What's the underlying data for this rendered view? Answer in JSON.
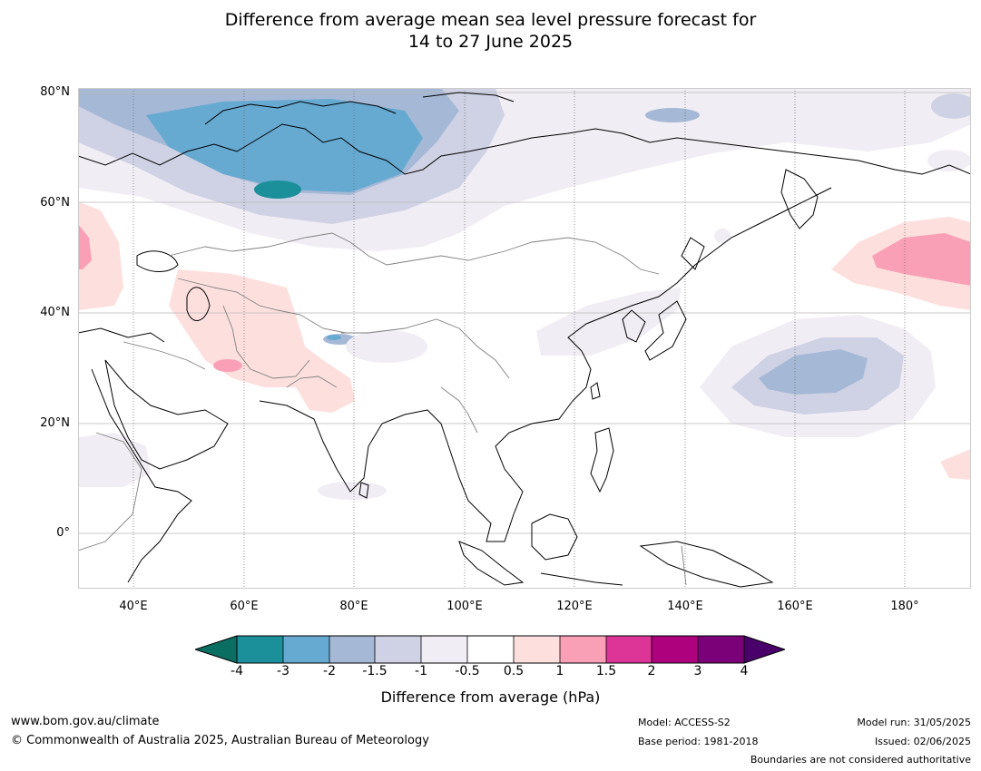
{
  "title": {
    "line1": "Difference from average mean sea level pressure forecast for",
    "line2": "14 to 27 June 2025"
  },
  "map": {
    "latitude_labels": [
      "80°N",
      "60°N",
      "40°N",
      "20°N",
      "0°"
    ],
    "longitude_labels": [
      "40°E",
      "60°E",
      "80°E",
      "100°E",
      "120°E",
      "140°E",
      "160°E",
      "180°"
    ]
  },
  "legend": {
    "title": "Difference from average (hPa)",
    "tick_labels": [
      "-4",
      "-3",
      "-2",
      "-1.5",
      "-1",
      "-0.5",
      "0.5",
      "1",
      "1.5",
      "2",
      "3",
      "4"
    ],
    "colors": {
      "below_-4": "#0b6e62",
      "-4_to_-3": "#1b8f9a",
      "-3_to_-2": "#66a9d1",
      "-2_to_-1.5": "#a5b9d6",
      "-1.5_to_-1": "#cfd2e4",
      "-1_to_-0.5": "#f1edf4",
      "-0.5_to_0.5": "#ffffff",
      "0.5_to_1": "#fde0dd",
      "1_to_1.5": "#f9a0b7",
      "1.5_to_2": "#dd3497",
      "2_to_3": "#ae017e",
      "3_to_4": "#7a0177",
      "above_4": "#49006a"
    }
  },
  "footer": {
    "website": "www.bom.gov.au/climate",
    "copyright": "© Commonwealth of Australia 2025, Australian Bureau of Meteorology",
    "model": "Model: ACCESS-S2",
    "base_period": "Base period: 1981-2018",
    "model_run": "Model run: 31/05/2025",
    "issued": "Issued: 02/06/2025",
    "disclaimer": "Boundaries are not considered authoritative"
  }
}
